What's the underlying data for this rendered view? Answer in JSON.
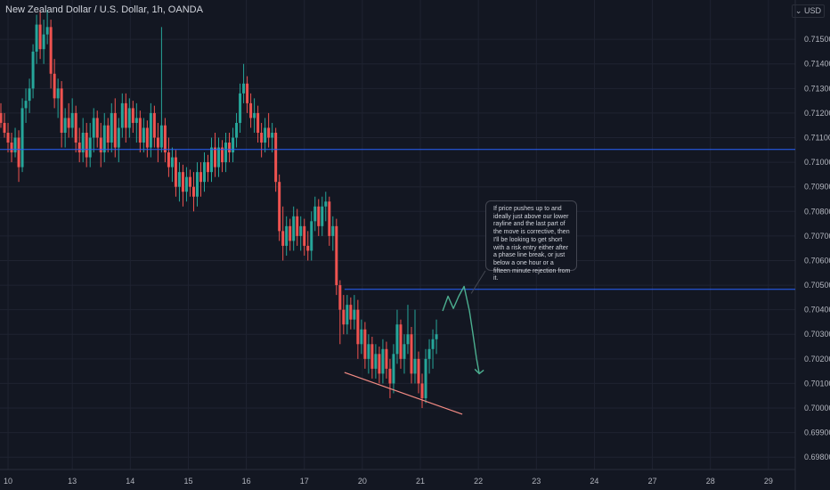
{
  "header": {
    "symbol_title": "New Zealand Dollar / U.S. Dollar, 1h, OANDA",
    "currency": "USD"
  },
  "colors": {
    "background": "#131722",
    "up_candle": "#26a69a",
    "down_candle": "#ef5350",
    "horizontal_line": "#2962ff",
    "trendline": "#f48b84",
    "projection": "#4caf90",
    "grid": "#1f2331",
    "text": "#b2b5be"
  },
  "annotation": {
    "text": "If price pushes up to and ideally just above our lower rayline and the last part of the move is corrective, then I'll be looking to get short with a risk entry either after a phase line break, or just below a one hour or a fifteen minute rejection from it."
  },
  "chart_data": {
    "type": "candlestick",
    "title": "New Zealand Dollar / U.S. Dollar, 1h, OANDA",
    "ylim": [
      0.6975,
      0.7166
    ],
    "y_ticks": [
      "0.71500",
      "0.71400",
      "0.71300",
      "0.71200",
      "0.71100",
      "0.71000",
      "0.70900",
      "0.70800",
      "0.70700",
      "0.70600",
      "0.70500",
      "0.70400",
      "0.70300",
      "0.70200",
      "0.70100",
      "0.70000",
      "0.69900",
      "0.69800"
    ],
    "x_ticks": [
      "10",
      "13",
      "14",
      "15",
      "16",
      "17",
      "20",
      "21",
      "22",
      "23",
      "24",
      "27",
      "28",
      "29"
    ],
    "x_tick_index": [
      9,
      81,
      146,
      211,
      276,
      341,
      406,
      471,
      536,
      601,
      666,
      731,
      796,
      861
    ],
    "total_bars": 930,
    "horizontal_lines": [
      {
        "price": 0.71052,
        "start_index": 0
      },
      {
        "price": 0.70483,
        "start_index": 386
      }
    ],
    "trendline": {
      "from": {
        "index": 386,
        "price": 0.70145
      },
      "to": {
        "index": 518,
        "price": 0.69975
      }
    },
    "projection_path": [
      {
        "index": 496,
        "price": 0.70395
      },
      {
        "index": 502,
        "price": 0.70455
      },
      {
        "index": 508,
        "price": 0.70405
      },
      {
        "index": 514,
        "price": 0.70455
      },
      {
        "index": 520,
        "price": 0.70495
      },
      {
        "index": 526,
        "price": 0.70395
      },
      {
        "index": 530,
        "price": 0.703
      },
      {
        "index": 534,
        "price": 0.702
      },
      {
        "index": 537,
        "price": 0.7014
      }
    ],
    "candles": [
      [
        1,
        0.712,
        0.7124,
        0.7114,
        0.7116
      ],
      [
        5,
        0.7116,
        0.712,
        0.711,
        0.7112
      ],
      [
        9,
        0.7112,
        0.7116,
        0.7104,
        0.7108
      ],
      [
        13,
        0.7108,
        0.7112,
        0.71,
        0.7104
      ],
      [
        17,
        0.7104,
        0.7114,
        0.7102,
        0.711
      ],
      [
        21,
        0.711,
        0.7113,
        0.7092,
        0.7098
      ],
      [
        25,
        0.7098,
        0.7126,
        0.7096,
        0.7122
      ],
      [
        29,
        0.7122,
        0.713,
        0.7116,
        0.7125
      ],
      [
        33,
        0.7125,
        0.7134,
        0.712,
        0.713
      ],
      [
        37,
        0.713,
        0.7148,
        0.7126,
        0.7145
      ],
      [
        41,
        0.7145,
        0.716,
        0.714,
        0.7156
      ],
      [
        45,
        0.7156,
        0.7162,
        0.7142,
        0.7146
      ],
      [
        49,
        0.7146,
        0.7158,
        0.714,
        0.7152
      ],
      [
        53,
        0.7152,
        0.7162,
        0.7148,
        0.7155
      ],
      [
        57,
        0.7155,
        0.7158,
        0.713,
        0.7136
      ],
      [
        61,
        0.7136,
        0.7142,
        0.7122,
        0.7126
      ],
      [
        65,
        0.7126,
        0.7134,
        0.7118,
        0.713
      ],
      [
        69,
        0.713,
        0.7133,
        0.7106,
        0.7112
      ],
      [
        73,
        0.7112,
        0.7122,
        0.7106,
        0.7118
      ],
      [
        77,
        0.7118,
        0.7124,
        0.711,
        0.7114
      ],
      [
        81,
        0.7114,
        0.7126,
        0.711,
        0.712
      ],
      [
        85,
        0.712,
        0.7123,
        0.7104,
        0.7108
      ],
      [
        89,
        0.7108,
        0.7114,
        0.71,
        0.7104
      ],
      [
        93,
        0.7104,
        0.7118,
        0.71,
        0.7112
      ],
      [
        97,
        0.7112,
        0.7116,
        0.7098,
        0.7102
      ],
      [
        101,
        0.7102,
        0.7116,
        0.7098,
        0.711
      ],
      [
        105,
        0.711,
        0.7122,
        0.7104,
        0.7118
      ],
      [
        109,
        0.7118,
        0.7121,
        0.7106,
        0.711
      ],
      [
        113,
        0.711,
        0.7116,
        0.7098,
        0.7104
      ],
      [
        117,
        0.7104,
        0.712,
        0.71,
        0.7115
      ],
      [
        121,
        0.7115,
        0.7118,
        0.7104,
        0.7108
      ],
      [
        125,
        0.7108,
        0.7124,
        0.7104,
        0.712
      ],
      [
        129,
        0.712,
        0.7126,
        0.7102,
        0.7106
      ],
      [
        133,
        0.7106,
        0.7118,
        0.71,
        0.7114
      ],
      [
        137,
        0.7114,
        0.7128,
        0.711,
        0.7124
      ],
      [
        141,
        0.7124,
        0.7128,
        0.7108,
        0.7114
      ],
      [
        145,
        0.7114,
        0.7126,
        0.711,
        0.7122
      ],
      [
        149,
        0.7122,
        0.7125,
        0.7112,
        0.7116
      ],
      [
        153,
        0.7116,
        0.7124,
        0.7108,
        0.7118
      ],
      [
        157,
        0.7118,
        0.7121,
        0.7104,
        0.7108
      ],
      [
        161,
        0.7108,
        0.7118,
        0.7104,
        0.7114
      ],
      [
        165,
        0.7114,
        0.7117,
        0.7102,
        0.7106
      ],
      [
        169,
        0.7106,
        0.7124,
        0.7102,
        0.712
      ],
      [
        173,
        0.712,
        0.7123,
        0.7106,
        0.711
      ],
      [
        177,
        0.711,
        0.7116,
        0.71,
        0.7106
      ],
      [
        181,
        0.7106,
        0.7155,
        0.7104,
        0.7115
      ],
      [
        185,
        0.7115,
        0.7118,
        0.71,
        0.7104
      ],
      [
        189,
        0.7104,
        0.711,
        0.7094,
        0.7098
      ],
      [
        193,
        0.7098,
        0.7106,
        0.7092,
        0.7102
      ],
      [
        197,
        0.7102,
        0.7105,
        0.7086,
        0.709
      ],
      [
        201,
        0.709,
        0.71,
        0.7084,
        0.7096
      ],
      [
        205,
        0.7096,
        0.7099,
        0.7082,
        0.7088
      ],
      [
        209,
        0.7088,
        0.7098,
        0.7084,
        0.7094
      ],
      [
        213,
        0.7094,
        0.7097,
        0.7086,
        0.709
      ],
      [
        217,
        0.709,
        0.7096,
        0.708,
        0.7086
      ],
      [
        221,
        0.7086,
        0.71,
        0.7082,
        0.7096
      ],
      [
        225,
        0.7096,
        0.71,
        0.7086,
        0.7092
      ],
      [
        229,
        0.7092,
        0.7104,
        0.7088,
        0.71
      ],
      [
        233,
        0.71,
        0.7103,
        0.7092,
        0.7096
      ],
      [
        237,
        0.7096,
        0.711,
        0.7092,
        0.7106
      ],
      [
        241,
        0.7106,
        0.7112,
        0.7094,
        0.7098
      ],
      [
        245,
        0.7098,
        0.711,
        0.7094,
        0.7106
      ],
      [
        249,
        0.7106,
        0.7109,
        0.7096,
        0.71
      ],
      [
        253,
        0.71,
        0.7112,
        0.7096,
        0.7108
      ],
      [
        257,
        0.7108,
        0.7112,
        0.71,
        0.7104
      ],
      [
        261,
        0.7104,
        0.7114,
        0.71,
        0.711
      ],
      [
        265,
        0.711,
        0.712,
        0.7106,
        0.7116
      ],
      [
        269,
        0.7116,
        0.7132,
        0.7112,
        0.7128
      ],
      [
        273,
        0.7128,
        0.714,
        0.7124,
        0.7132
      ],
      [
        277,
        0.7132,
        0.7135,
        0.712,
        0.7124
      ],
      [
        281,
        0.7124,
        0.7128,
        0.7114,
        0.7118
      ],
      [
        285,
        0.7118,
        0.7126,
        0.7112,
        0.712
      ],
      [
        289,
        0.712,
        0.7123,
        0.7108,
        0.7112
      ],
      [
        293,
        0.7112,
        0.7116,
        0.7102,
        0.7108
      ],
      [
        297,
        0.7108,
        0.7118,
        0.7104,
        0.7114
      ],
      [
        301,
        0.7114,
        0.712,
        0.7106,
        0.711
      ],
      [
        305,
        0.711,
        0.7116,
        0.7104,
        0.7112
      ],
      [
        309,
        0.7112,
        0.7114,
        0.7088,
        0.7092
      ],
      [
        313,
        0.7092,
        0.7095,
        0.7068,
        0.7072
      ],
      [
        317,
        0.7072,
        0.7082,
        0.706,
        0.7066
      ],
      [
        321,
        0.7066,
        0.7078,
        0.7062,
        0.7074
      ],
      [
        325,
        0.7074,
        0.7077,
        0.7064,
        0.7068
      ],
      [
        329,
        0.7068,
        0.7082,
        0.7064,
        0.7078
      ],
      [
        333,
        0.7078,
        0.7081,
        0.7066,
        0.707
      ],
      [
        337,
        0.707,
        0.7078,
        0.7064,
        0.7074
      ],
      [
        341,
        0.7074,
        0.7077,
        0.7062,
        0.7066
      ],
      [
        345,
        0.7066,
        0.7072,
        0.706,
        0.7064
      ],
      [
        349,
        0.7064,
        0.708,
        0.706,
        0.7076
      ],
      [
        353,
        0.7076,
        0.7086,
        0.7072,
        0.7082
      ],
      [
        357,
        0.7082,
        0.7085,
        0.707,
        0.7074
      ],
      [
        361,
        0.7074,
        0.7086,
        0.707,
        0.7082
      ],
      [
        365,
        0.7082,
        0.7088,
        0.7076,
        0.7084
      ],
      [
        369,
        0.7084,
        0.7086,
        0.7066,
        0.707
      ],
      [
        373,
        0.707,
        0.7078,
        0.7064,
        0.7074
      ],
      [
        377,
        0.7074,
        0.7077,
        0.7046,
        0.705
      ],
      [
        381,
        0.705,
        0.7052,
        0.7026,
        0.704
      ],
      [
        385,
        0.704,
        0.7046,
        0.703,
        0.7034
      ],
      [
        389,
        0.7034,
        0.7046,
        0.703,
        0.7042
      ],
      [
        393,
        0.7042,
        0.7045,
        0.7032,
        0.7036
      ],
      [
        397,
        0.7036,
        0.7046,
        0.7032,
        0.704
      ],
      [
        401,
        0.704,
        0.7044,
        0.702,
        0.7026
      ],
      [
        405,
        0.7026,
        0.7036,
        0.7022,
        0.7032
      ],
      [
        409,
        0.7032,
        0.7035,
        0.7016,
        0.702
      ],
      [
        413,
        0.702,
        0.703,
        0.7014,
        0.7026
      ],
      [
        417,
        0.7026,
        0.7029,
        0.7012,
        0.7016
      ],
      [
        421,
        0.7016,
        0.7026,
        0.7012,
        0.7022
      ],
      [
        425,
        0.7022,
        0.7025,
        0.701,
        0.7014
      ],
      [
        429,
        0.7014,
        0.7028,
        0.701,
        0.7024
      ],
      [
        433,
        0.7024,
        0.7027,
        0.7012,
        0.7016
      ],
      [
        437,
        0.7016,
        0.702,
        0.7004,
        0.701
      ],
      [
        441,
        0.701,
        0.7026,
        0.7006,
        0.7022
      ],
      [
        445,
        0.7022,
        0.704,
        0.7018,
        0.7034
      ],
      [
        449,
        0.7034,
        0.7036,
        0.7016,
        0.702
      ],
      [
        453,
        0.702,
        0.703,
        0.7014,
        0.7026
      ],
      [
        457,
        0.7026,
        0.7042,
        0.7022,
        0.703
      ],
      [
        461,
        0.703,
        0.7033,
        0.701,
        0.7014
      ],
      [
        465,
        0.7014,
        0.704,
        0.701,
        0.702
      ],
      [
        469,
        0.702,
        0.7023,
        0.7006,
        0.701
      ],
      [
        473,
        0.701,
        0.7014,
        0.7,
        0.7004
      ],
      [
        477,
        0.7004,
        0.7024,
        0.7002,
        0.702
      ],
      [
        481,
        0.702,
        0.7028,
        0.7014,
        0.7024
      ],
      [
        485,
        0.7024,
        0.7032,
        0.7016,
        0.7028
      ],
      [
        489,
        0.7028,
        0.7036,
        0.7022,
        0.703
      ]
    ]
  }
}
